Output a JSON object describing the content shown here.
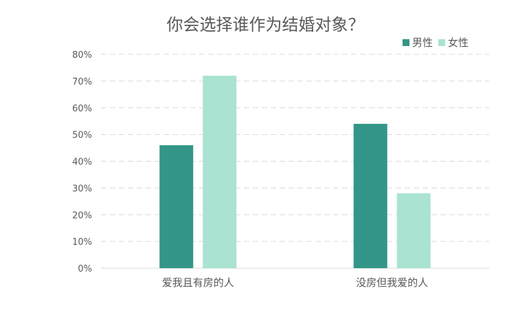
{
  "chart_data": {
    "type": "bar",
    "title": "你会选择谁作为结婚对象？",
    "categories": [
      "爱我且有房的人",
      "没房但我爱的人"
    ],
    "series": [
      {
        "name": "男性",
        "values": [
          46,
          54
        ],
        "color": "#339688"
      },
      {
        "name": "女性",
        "values": [
          72,
          28
        ],
        "color": "#aae3d2"
      }
    ],
    "y_ticks": [
      "0%",
      "10%",
      "20%",
      "30%",
      "40%",
      "50%",
      "60%",
      "70%",
      "80%"
    ],
    "ylim": [
      0,
      80
    ],
    "grid": true,
    "legend_position": "top-right"
  }
}
